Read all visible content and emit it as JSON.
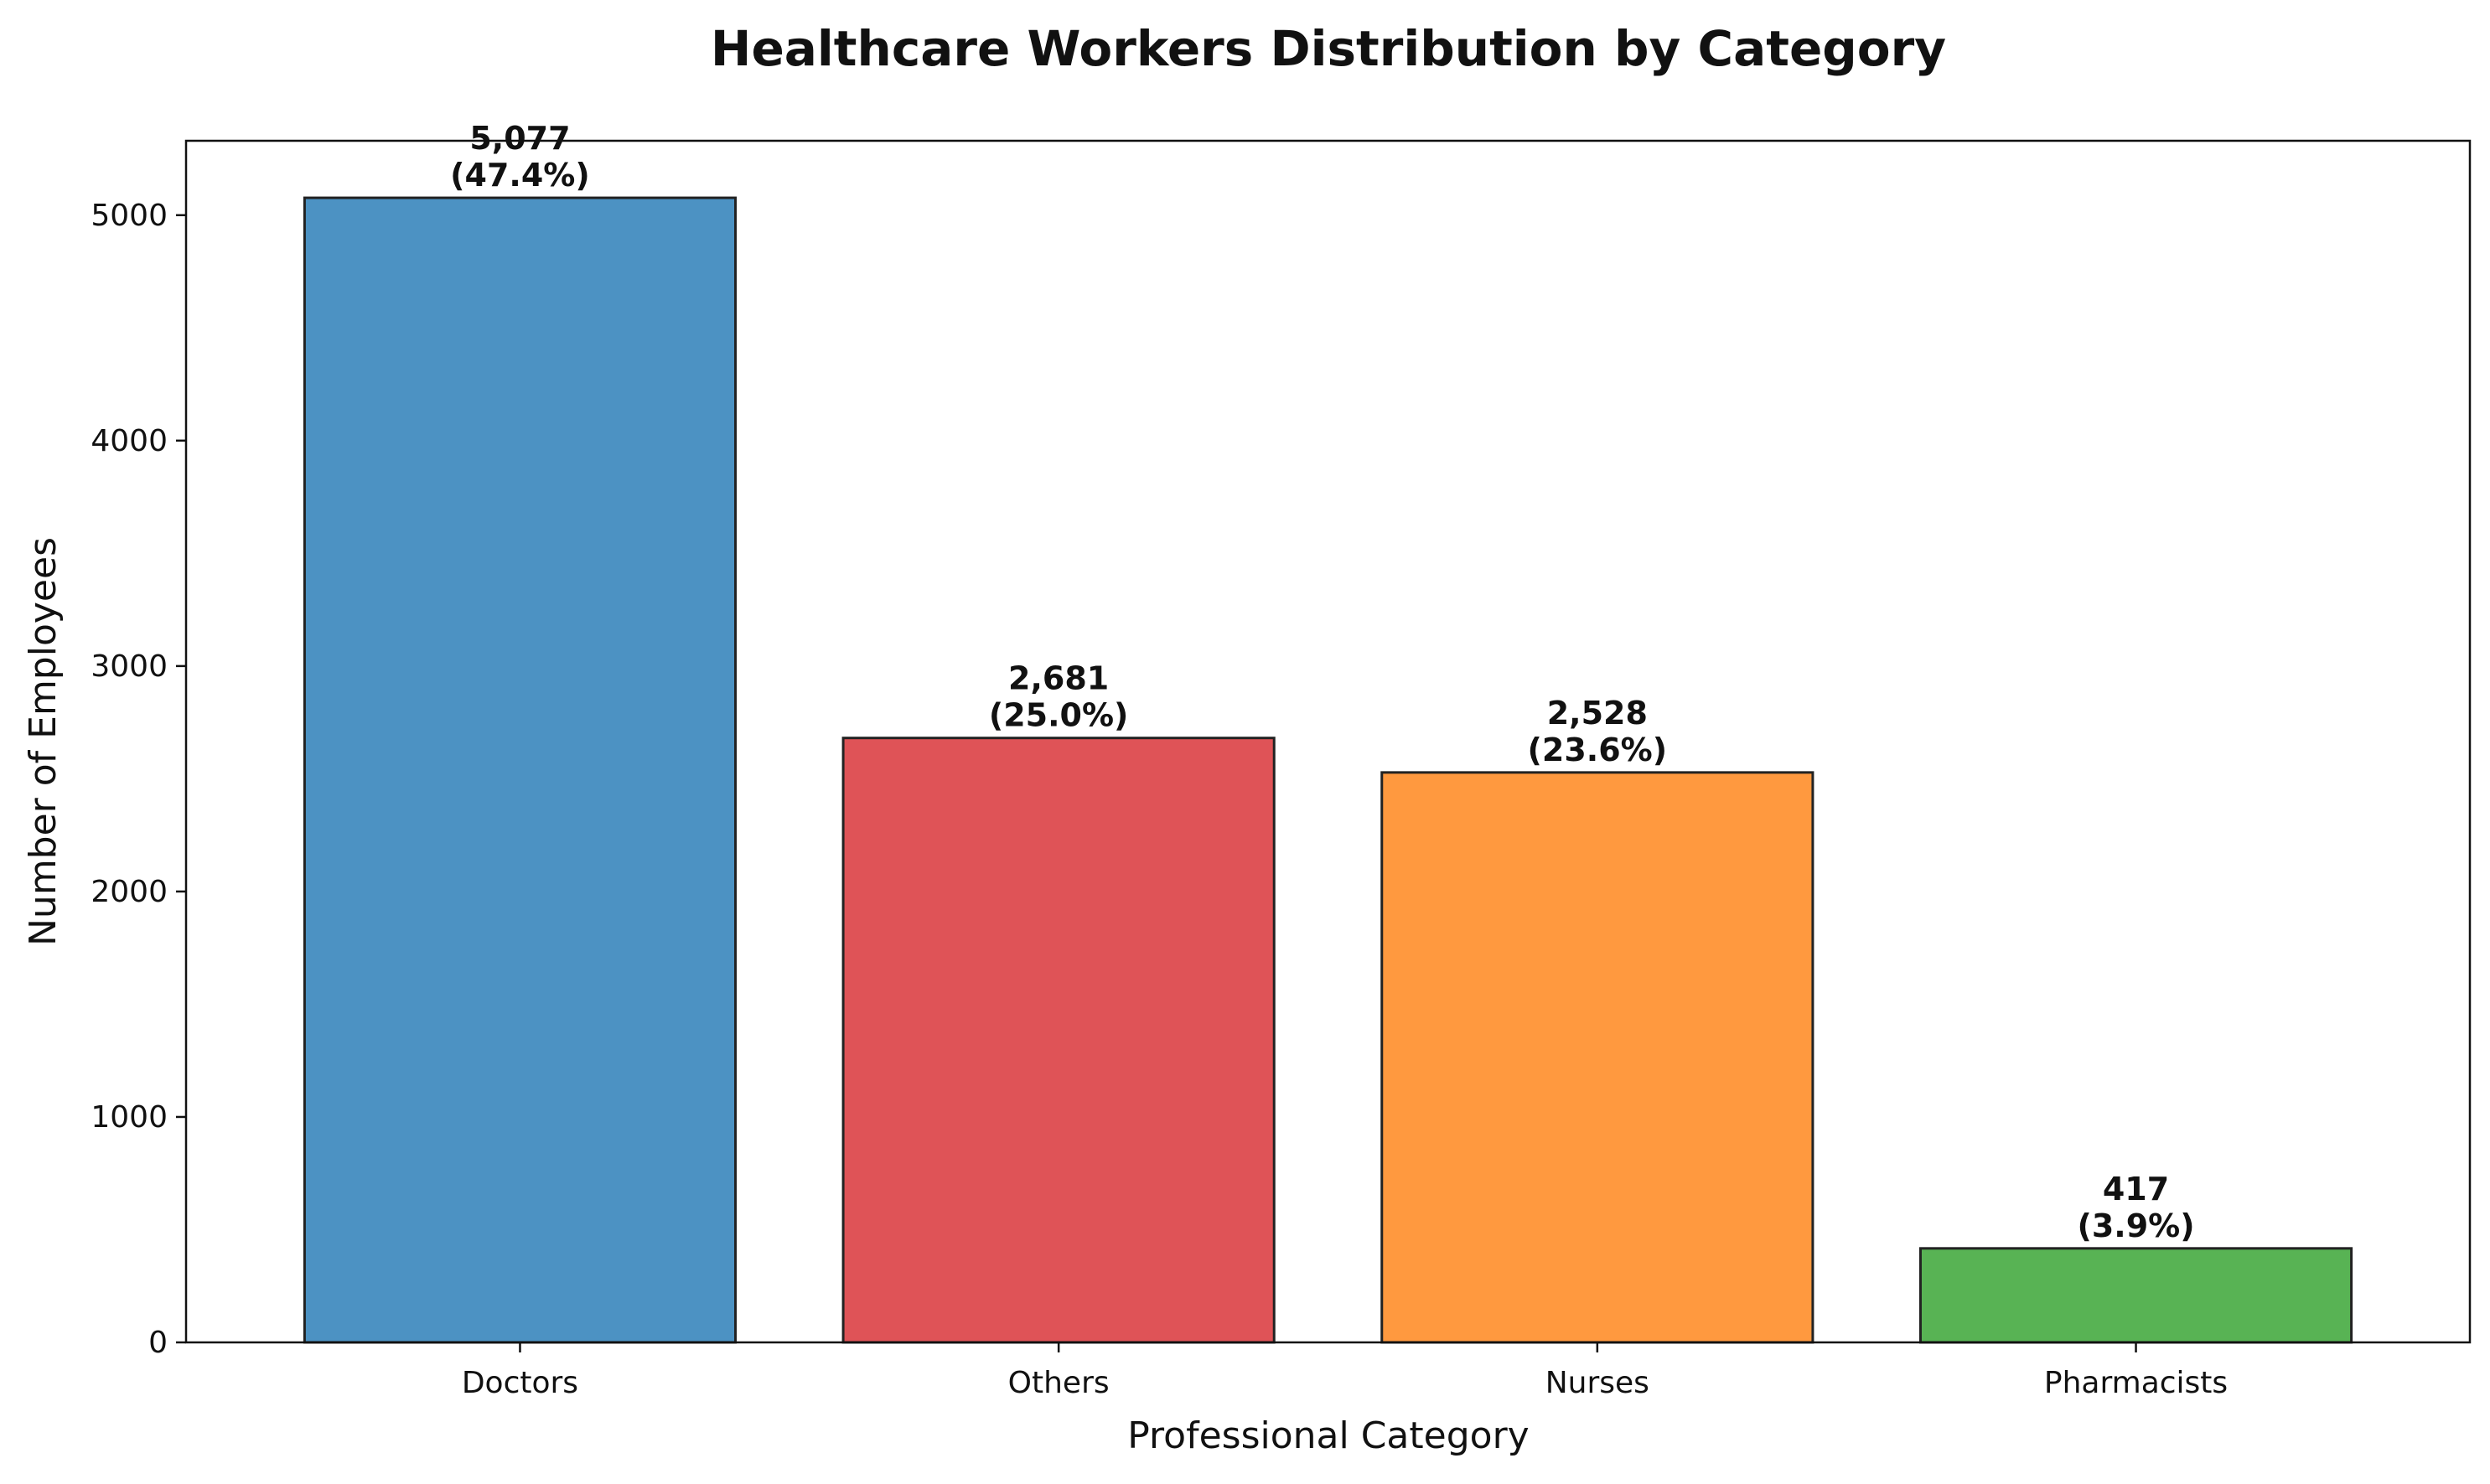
{
  "chart_data": {
    "type": "bar",
    "title": "Healthcare Workers Distribution by Category",
    "xlabel": "Professional Category",
    "ylabel": "Number of Employees",
    "categories": [
      "Doctors",
      "Others",
      "Nurses",
      "Pharmacists"
    ],
    "values": [
      5077,
      2681,
      2528,
      417
    ],
    "value_labels": [
      "5,077",
      "2,681",
      "2,528",
      "417"
    ],
    "percent_labels": [
      "(47.4%)",
      "(25.0%)",
      "(23.6%)",
      "(3.9%)"
    ],
    "colors": [
      "#4c92c3",
      "#df5357",
      "#ff993f",
      "#58b354"
    ],
    "ylim": [
      0,
      5330
    ],
    "yticks": [
      0,
      1000,
      2000,
      3000,
      4000,
      5000
    ],
    "ytick_labels": [
      "0",
      "1000",
      "2000",
      "3000",
      "4000",
      "5000"
    ],
    "grid": false,
    "legend": "none"
  }
}
